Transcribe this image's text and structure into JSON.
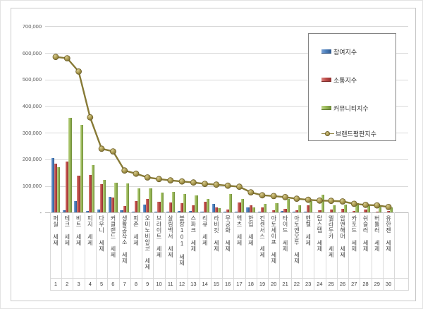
{
  "chart_data": {
    "type": "bar+line",
    "title": "",
    "grid": true,
    "legend_position": "top-right",
    "ylim": [
      0,
      700000
    ],
    "ytick_labels": [
      "700,000",
      "600,000",
      "500,000",
      "400,000",
      "300,000",
      "200,000",
      "100,000",
      "-"
    ],
    "categories": [
      "퍼실 세제",
      "테크 세제",
      "비트 세제",
      "피지 세제",
      "다우니 세제",
      "커클랜드 세제",
      "생활공작소 세제",
      "피존 세제",
      "오미노비앙코 세제",
      "브라이트 세제",
      "살림백서 세제",
      "블랑101 세제",
      "스파크 세제",
      "리큐 세제",
      "라비킷 세제",
      "무궁화 세제",
      "액츠 세제",
      "한입 세제",
      "컨센서스 세제",
      "아토세이프 세제",
      "타이드 세제",
      "아토엔오투 세제",
      "헨켈 세제",
      "탑스텝 세제",
      "엘라두카 세제",
      "암앤해머 세제",
      "카포드 세제",
      "쉬슬러 세제",
      "버틀러 세제",
      "유한젠 세제"
    ],
    "rank_labels": [
      "1",
      "2",
      "3",
      "4",
      "5",
      "6",
      "7",
      "8",
      "9",
      "10",
      "11",
      "12",
      "13",
      "14",
      "15",
      "16",
      "17",
      "18",
      "19",
      "20",
      "21",
      "22",
      "23",
      "24",
      "25",
      "26",
      "27",
      "28",
      "29",
      "30"
    ],
    "series": [
      {
        "name": "참여지수",
        "type": "bar",
        "color": "#4a7ebb",
        "values": [
          206000,
          8000,
          42000,
          6000,
          11000,
          58000,
          8000,
          4000,
          30000,
          3000,
          3000,
          5000,
          7000,
          4000,
          33000,
          3000,
          3000,
          20000,
          3000,
          2000,
          7000,
          3000,
          4000,
          2000,
          2000,
          2000,
          2000,
          1000,
          1000,
          2000
        ]
      },
      {
        "name": "소통지수",
        "type": "bar",
        "color": "#bf4b48",
        "values": [
          184000,
          191000,
          140000,
          142000,
          108000,
          57000,
          26000,
          44000,
          50000,
          41000,
          38000,
          36000,
          27000,
          40000,
          20000,
          12000,
          39000,
          27000,
          20000,
          10000,
          14000,
          8000,
          28000,
          9000,
          11000,
          15000,
          6000,
          11000,
          4000,
          6000
        ]
      },
      {
        "name": "커뮤니티지수",
        "type": "bar",
        "color": "#9aba58",
        "values": [
          171000,
          357000,
          330000,
          178000,
          124000,
          111000,
          110000,
          90000,
          90000,
          76000,
          79000,
          70000,
          65000,
          50000,
          17000,
          70000,
          50000,
          19000,
          32000,
          34000,
          51000,
          28000,
          42000,
          67000,
          27000,
          29000,
          35000,
          30000,
          24000,
          20000
        ]
      },
      {
        "name": "브랜드평판지수",
        "type": "line",
        "color": "#877a36",
        "values": [
          585000,
          580000,
          530000,
          358000,
          240000,
          230000,
          158000,
          146000,
          132000,
          126000,
          121000,
          117000,
          113000,
          108000,
          105000,
          101000,
          97000,
          76000,
          65000,
          62000,
          58000,
          52000,
          48000,
          45000,
          44000,
          42000,
          33000,
          29000,
          27000,
          21000
        ]
      }
    ]
  },
  "legend": {
    "items": [
      "참여지수",
      "소통지수",
      "커뮤니티지수",
      "브랜드평판지수"
    ]
  }
}
